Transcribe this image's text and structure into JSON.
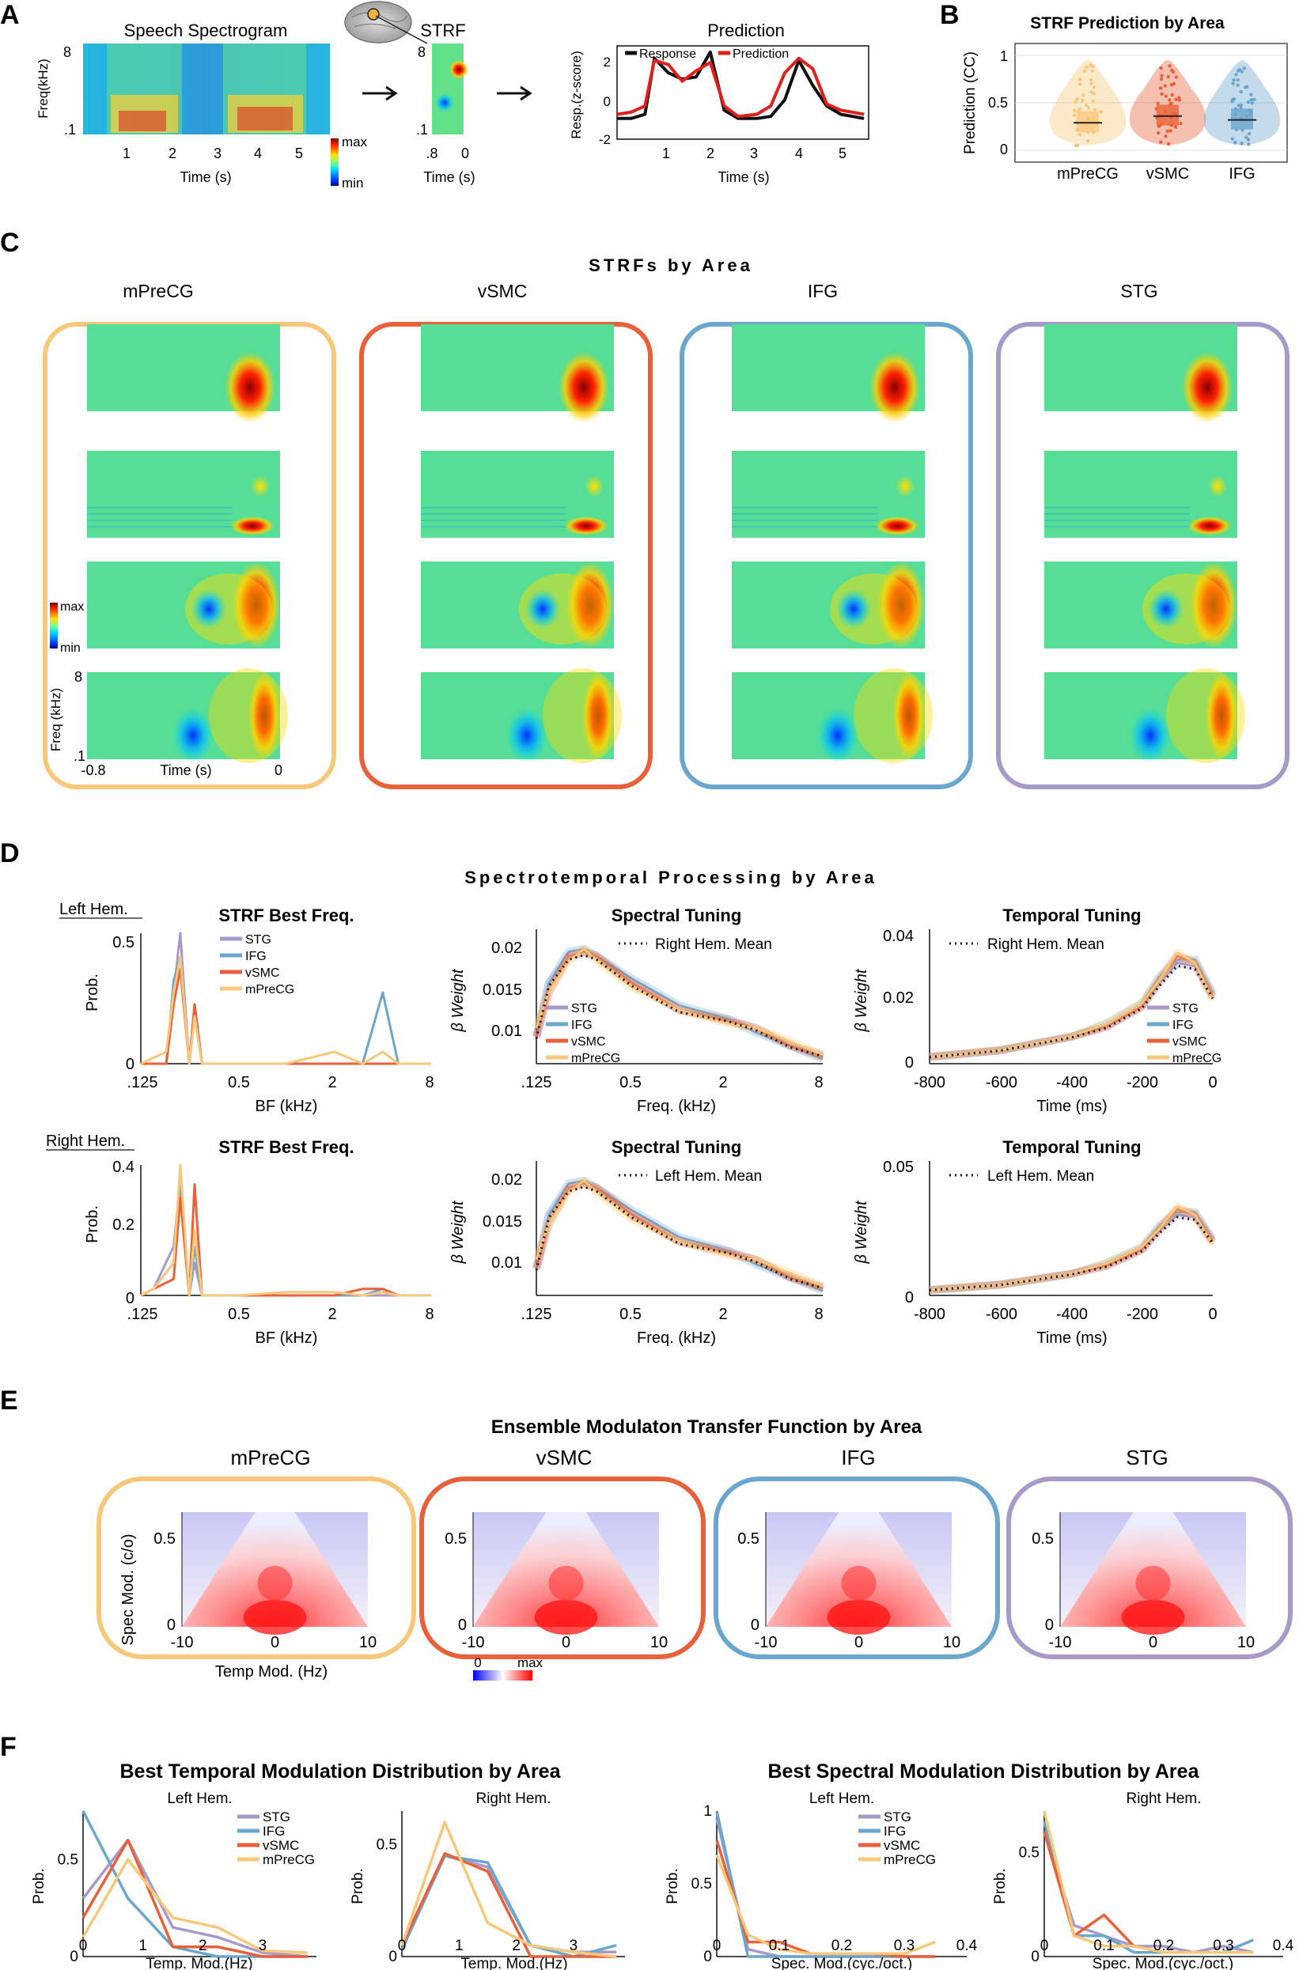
{
  "panels": {
    "A": {
      "letter": "A",
      "spectrogram": {
        "title": "Speech Spectrogram",
        "ylabel": "Freq(kHz)",
        "ytick_top": "8",
        "ytick_bottom": ".1",
        "xlabel": "Time (s)",
        "xticks": [
          "1",
          "2",
          "3",
          "4",
          "5"
        ],
        "cbar_max": "max",
        "cbar_min": "min"
      },
      "strf": {
        "title": "STRF",
        "ytick_top": "8",
        "ytick_bottom": ".1",
        "xticks": [
          ".8",
          "0"
        ],
        "xlabel": "Time (s)"
      },
      "prediction": {
        "title": "Prediction",
        "ylabel": "Resp.(z-score)",
        "xlabel": "Time (s)",
        "yticks": [
          "2",
          "0",
          "-2"
        ],
        "xticks": [
          "1",
          "2",
          "3",
          "4",
          "5"
        ],
        "legend": [
          "Response",
          "Prediction"
        ]
      }
    },
    "B": {
      "letter": "B",
      "title": "STRF Prediction by Area",
      "ylabel": "Prediction (CC)",
      "yticks": [
        "1",
        "0.5",
        "0"
      ],
      "categories": [
        "mPreCG",
        "vSMC",
        "IFG"
      ]
    },
    "C": {
      "letter": "C",
      "title": "STRFs by Area",
      "areas": [
        "mPreCG",
        "vSMC",
        "IFG",
        "STG"
      ],
      "cbar_max": "max",
      "cbar_min": "min",
      "ylabel": "Freq (kHz)",
      "ytick_top": "8",
      "ytick_bottom": ".1",
      "xlabel": "Time (s)",
      "xtick_left": "-0.8",
      "xtick_right": "0"
    },
    "D": {
      "letter": "D",
      "title": "Spectrotemporal Processing by Area",
      "left_label": "Left Hem.",
      "right_label": "Right Hem.",
      "bf_title": "STRF Best Freq.",
      "bf_xlabel": "BF (kHz)",
      "bf_ylabel": "Prob.",
      "bf_xticks": [
        ".125",
        "0.5",
        "2",
        "8"
      ],
      "bf_left_yticks": [
        "0.5",
        "0"
      ],
      "bf_right_yticks": [
        "0.4",
        "0.2",
        "0"
      ],
      "spec_title": "Spectral Tuning",
      "spec_xlabel": "Freq. (kHz)",
      "spec_ylabel": "β Weight",
      "spec_xticks": [
        ".125",
        "0.5",
        "2",
        "8"
      ],
      "spec_yticks": [
        "0.02",
        "0.015",
        "0.01"
      ],
      "temp_title": "Temporal Tuning",
      "temp_xlabel": "Time (ms)",
      "temp_ylabel": "β Weight",
      "temp_xticks": [
        "-800",
        "-600",
        "-400",
        "-200",
        "0"
      ],
      "temp_left_yticks": [
        "0.04",
        "0.02",
        "0"
      ],
      "temp_right_yticks": [
        "0.05",
        "0"
      ],
      "legend_areas": [
        "STG",
        "IFG",
        "vSMC",
        "mPreCG"
      ],
      "right_mean_label": "Right Hem. Mean",
      "left_mean_label": "Left Hem. Mean"
    },
    "E": {
      "letter": "E",
      "title": "Ensemble Modulaton Transfer Function by Area",
      "areas": [
        "mPreCG",
        "vSMC",
        "IFG",
        "STG"
      ],
      "ylabel": "Spec Mod. (c/o)",
      "xlabel": "Temp Mod. (Hz)",
      "yticks": [
        "0.5",
        "0"
      ],
      "xticks": [
        "-10",
        "0",
        "10"
      ],
      "cbar_min": "0",
      "cbar_max": "max"
    },
    "F": {
      "letter": "F",
      "temp_title": "Best Temporal Modulation Distribution by Area",
      "spec_title": "Best Spectral Modulation Distribution by Area",
      "left_label": "Left Hem.",
      "right_label": "Right Hem.",
      "ylabel": "Prob.",
      "temp_xlabel": "Temp. Mod.(Hz)",
      "spec_xlabel": "Spec. Mod.(cyc./oct.)",
      "temp_xticks": [
        "0",
        "1",
        "2",
        "3"
      ],
      "spec_xticks": [
        "0",
        "0.1",
        "0.2",
        "0.3",
        "0.4"
      ],
      "yticks": [
        "0.5",
        "0"
      ],
      "spec_left_yticks": [
        "1",
        "0.5",
        "0"
      ],
      "legend_areas": [
        "STG",
        "IFG",
        "vSMC",
        "mPreCG"
      ]
    }
  },
  "colors": {
    "mPreCG": "#F8C87A",
    "vSMC": "#E8613A",
    "IFG": "#6BA6CD",
    "STG": "#A79AC9"
  },
  "chart_data": [
    {
      "type": "line",
      "title": "Prediction",
      "x": [
        0.2,
        0.5,
        0.8,
        1.0,
        1.3,
        1.6,
        1.9,
        2.2,
        2.5,
        2.8,
        3.2,
        3.5,
        3.8,
        4.1,
        4.4,
        4.7,
        5.0,
        5.5
      ],
      "series": [
        {
          "name": "Response",
          "values": [
            -1.0,
            -1.0,
            -0.8,
            1.9,
            1.2,
            0.9,
            1.0,
            2.2,
            -0.6,
            -1.0,
            -1.0,
            -0.9,
            -0.1,
            1.8,
            0.6,
            -0.4,
            -0.8,
            -1.0
          ]
        },
        {
          "name": "Prediction",
          "values": [
            -0.8,
            -0.7,
            -0.4,
            1.8,
            1.6,
            0.8,
            1.3,
            1.7,
            -0.4,
            -0.9,
            -0.8,
            -0.4,
            1.2,
            1.9,
            1.4,
            -0.3,
            -0.6,
            -0.8
          ]
        }
      ],
      "xlim": [
        0.2,
        5.6
      ],
      "ylim": [
        -2,
        2.5
      ]
    },
    {
      "type": "scatter",
      "title": "STRF Prediction by Area",
      "categories": [
        "mPreCG",
        "vSMC",
        "IFG"
      ],
      "medians": [
        0.29,
        0.36,
        0.32
      ],
      "ylim": [
        0,
        1
      ]
    },
    {
      "type": "line",
      "title": "STRF Best Freq. (Left Hem.)",
      "x": [
        0.125,
        0.18,
        0.2,
        0.22,
        0.25,
        0.27,
        0.3,
        0.5,
        1,
        2,
        3,
        4,
        5,
        8
      ],
      "series": [
        {
          "name": "STG",
          "values": [
            0,
            0,
            0.3,
            0.55,
            0,
            0.2,
            0,
            0,
            0,
            0,
            0,
            0,
            0,
            0
          ]
        },
        {
          "name": "IFG",
          "values": [
            0,
            0,
            0.35,
            0.45,
            0,
            0.25,
            0,
            0,
            0,
            0,
            0,
            0.3,
            0,
            0
          ]
        },
        {
          "name": "vSMC",
          "values": [
            0,
            0,
            0.25,
            0.4,
            0,
            0.25,
            0,
            0,
            0,
            0,
            0,
            0,
            0,
            0
          ]
        },
        {
          "name": "mPreCG",
          "values": [
            0,
            0.05,
            0.3,
            0.45,
            0,
            0.2,
            0,
            0,
            0,
            0.05,
            0,
            0.05,
            0,
            0
          ]
        }
      ],
      "ylim": [
        0,
        0.55
      ]
    },
    {
      "type": "line",
      "title": "STRF Best Freq. (Right Hem.)",
      "x": [
        0.125,
        0.15,
        0.2,
        0.22,
        0.25,
        0.27,
        0.3,
        0.5,
        1,
        2,
        3,
        4,
        5,
        8
      ],
      "series": [
        {
          "name": "STG",
          "values": [
            0,
            0.02,
            0.15,
            0.35,
            0,
            0.1,
            0,
            0,
            0,
            0,
            0,
            0,
            0,
            0
          ]
        },
        {
          "name": "IFG",
          "values": [
            0,
            0.02,
            0.1,
            0.33,
            0,
            0.15,
            0,
            0,
            0,
            0,
            0,
            0.02,
            0,
            0
          ]
        },
        {
          "name": "vSMC",
          "values": [
            0,
            0.02,
            0.05,
            0.3,
            0,
            0.34,
            0,
            0,
            0,
            0,
            0.02,
            0.02,
            0,
            0
          ]
        },
        {
          "name": "mPreCG",
          "values": [
            0,
            0.02,
            0.1,
            0.4,
            0,
            0.2,
            0,
            0,
            0.01,
            0.01,
            0,
            0.01,
            0,
            0
          ]
        }
      ],
      "ylim": [
        0,
        0.4
      ]
    },
    {
      "type": "line",
      "title": "Spectral Tuning",
      "x": [
        0.125,
        0.15,
        0.2,
        0.25,
        0.3,
        0.5,
        1,
        2,
        3,
        5,
        8
      ],
      "series": [
        {
          "name": "STG",
          "values": [
            0.01,
            0.016,
            0.019,
            0.0195,
            0.019,
            0.016,
            0.013,
            0.012,
            0.011,
            0.009,
            0.008
          ]
        },
        {
          "name": "IFG",
          "values": [
            0.01,
            0.016,
            0.0195,
            0.0198,
            0.019,
            0.0165,
            0.0135,
            0.012,
            0.0105,
            0.009,
            0.0075
          ]
        },
        {
          "name": "vSMC",
          "values": [
            0.01,
            0.015,
            0.019,
            0.0195,
            0.019,
            0.016,
            0.013,
            0.0118,
            0.011,
            0.009,
            0.0078
          ]
        },
        {
          "name": "mPreCG",
          "values": [
            0.011,
            0.015,
            0.0185,
            0.0198,
            0.0185,
            0.0155,
            0.013,
            0.0115,
            0.011,
            0.0095,
            0.008
          ]
        }
      ],
      "ylim": [
        0.007,
        0.022
      ]
    },
    {
      "type": "line",
      "title": "Temporal Tuning",
      "x": [
        -800,
        -600,
        -400,
        -300,
        -200,
        -150,
        -100,
        -50,
        0
      ],
      "series": [
        {
          "name": "STG",
          "values": [
            0.002,
            0.004,
            0.008,
            0.011,
            0.017,
            0.024,
            0.03,
            0.029,
            0.02
          ]
        },
        {
          "name": "IFG",
          "values": [
            0.002,
            0.004,
            0.008,
            0.012,
            0.018,
            0.026,
            0.031,
            0.031,
            0.021
          ]
        },
        {
          "name": "vSMC",
          "values": [
            0.002,
            0.004,
            0.008,
            0.011,
            0.017,
            0.025,
            0.032,
            0.03,
            0.02
          ]
        },
        {
          "name": "mPreCG",
          "values": [
            0.002,
            0.004,
            0.008,
            0.012,
            0.018,
            0.025,
            0.033,
            0.03,
            0.019
          ]
        }
      ],
      "ylim": [
        0,
        0.04
      ]
    },
    {
      "type": "heatmap",
      "title": "Ensemble Modulaton Transfer Function by Area",
      "xlim": [
        -10,
        10
      ],
      "ylim": [
        0,
        0.65
      ]
    },
    {
      "type": "line",
      "title": "Best Temporal Modulation Distribution (Left Hem.)",
      "x": [
        0,
        0.75,
        1.5,
        2.25,
        3,
        3.75
      ],
      "series": [
        {
          "name": "STG",
          "values": [
            0.3,
            0.6,
            0.15,
            0.1,
            0.02,
            0
          ]
        },
        {
          "name": "IFG",
          "values": [
            0.75,
            0.3,
            0.05,
            0,
            0,
            0
          ]
        },
        {
          "name": "vSMC",
          "values": [
            0.2,
            0.6,
            0.05,
            0.05,
            0,
            0
          ]
        },
        {
          "name": "mPreCG",
          "values": [
            0.1,
            0.5,
            0.2,
            0.15,
            0.03,
            0.02
          ]
        }
      ],
      "ylim": [
        0,
        0.75
      ]
    },
    {
      "type": "line",
      "title": "Best Temporal Modulation Distribution (Right Hem.)",
      "x": [
        0,
        0.75,
        1.5,
        2.25,
        3,
        3.75
      ],
      "series": [
        {
          "name": "STG",
          "values": [
            0.05,
            0.45,
            0.4,
            0.05,
            0.02,
            0.02
          ]
        },
        {
          "name": "IFG",
          "values": [
            0.03,
            0.45,
            0.42,
            0.05,
            0,
            0.05
          ]
        },
        {
          "name": "vSMC",
          "values": [
            0.05,
            0.46,
            0.38,
            0,
            0,
            0
          ]
        },
        {
          "name": "mPreCG",
          "values": [
            0.05,
            0.6,
            0.15,
            0.05,
            0.02,
            0
          ]
        }
      ],
      "ylim": [
        0,
        0.65
      ]
    },
    {
      "type": "line",
      "title": "Best Spectral Modulation Distribution (Left Hem.)",
      "x": [
        0,
        0.05,
        0.1,
        0.15,
        0.2,
        0.25,
        0.3,
        0.35
      ],
      "series": [
        {
          "name": "STG",
          "values": [
            0.95,
            0.05,
            0,
            0,
            0,
            0,
            0,
            0
          ]
        },
        {
          "name": "IFG",
          "values": [
            1.0,
            0,
            0,
            0,
            0,
            0,
            0,
            0
          ]
        },
        {
          "name": "vSMC",
          "values": [
            0.8,
            0.1,
            0.1,
            0.02,
            0.02,
            0.02,
            0,
            0
          ]
        },
        {
          "name": "mPreCG",
          "values": [
            0.7,
            0.15,
            0.05,
            0.02,
            0.02,
            0.02,
            0.02,
            0.1
          ]
        }
      ],
      "ylim": [
        0,
        1
      ]
    },
    {
      "type": "line",
      "title": "Best Spectral Modulation Distribution (Right Hem.)",
      "x": [
        0,
        0.05,
        0.1,
        0.15,
        0.2,
        0.25,
        0.3,
        0.35
      ],
      "series": [
        {
          "name": "STG",
          "values": [
            0.6,
            0.15,
            0.1,
            0.05,
            0.05,
            0.02,
            0.05,
            0.02
          ]
        },
        {
          "name": "IFG",
          "values": [
            0.65,
            0.1,
            0.1,
            0.02,
            0.02,
            0.02,
            0.02,
            0.08
          ]
        },
        {
          "name": "vSMC",
          "values": [
            0.6,
            0.1,
            0.2,
            0.05,
            0.02,
            0.02,
            0.02,
            0.02
          ]
        },
        {
          "name": "mPreCG",
          "values": [
            0.7,
            0.1,
            0.05,
            0.05,
            0.02,
            0.02,
            0.02,
            0.02
          ]
        }
      ],
      "ylim": [
        0,
        0.7
      ]
    }
  ]
}
